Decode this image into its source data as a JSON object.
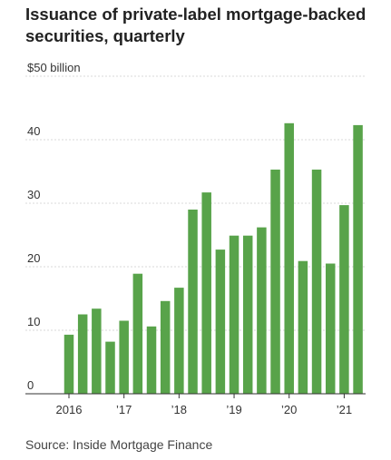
{
  "title": "Issuance of private-label mortgage-backed securities, quarterly",
  "source": "Source: Inside Mortgage Finance",
  "colors": {
    "bar": "#58a34a"
  },
  "chart_data": {
    "type": "bar",
    "y_unit_label": "$50 billion",
    "ylim": [
      0,
      50
    ],
    "yticks": [
      0,
      10,
      20,
      30,
      40
    ],
    "xticks": [
      "2016",
      "’17",
      "’18",
      "’19",
      "’20",
      "’21"
    ],
    "categories": [
      "2016 Q1",
      "2016 Q2",
      "2016 Q3",
      "2016 Q4",
      "2017 Q1",
      "2017 Q2",
      "2017 Q3",
      "2017 Q4",
      "2018 Q1",
      "2018 Q2",
      "2018 Q3",
      "2018 Q4",
      "2019 Q1",
      "2019 Q2",
      "2019 Q3",
      "2019 Q4",
      "2020 Q1",
      "2020 Q2",
      "2020 Q3",
      "2020 Q4",
      "2021 Q1",
      "2021 Q2"
    ],
    "values": [
      9.3,
      12.5,
      13.4,
      8.2,
      11.5,
      18.9,
      10.6,
      14.6,
      16.7,
      29.0,
      31.7,
      22.7,
      24.9,
      24.9,
      26.2,
      35.3,
      42.6,
      20.9,
      35.3,
      20.5,
      29.7,
      42.3
    ],
    "grid": "horizontal"
  }
}
